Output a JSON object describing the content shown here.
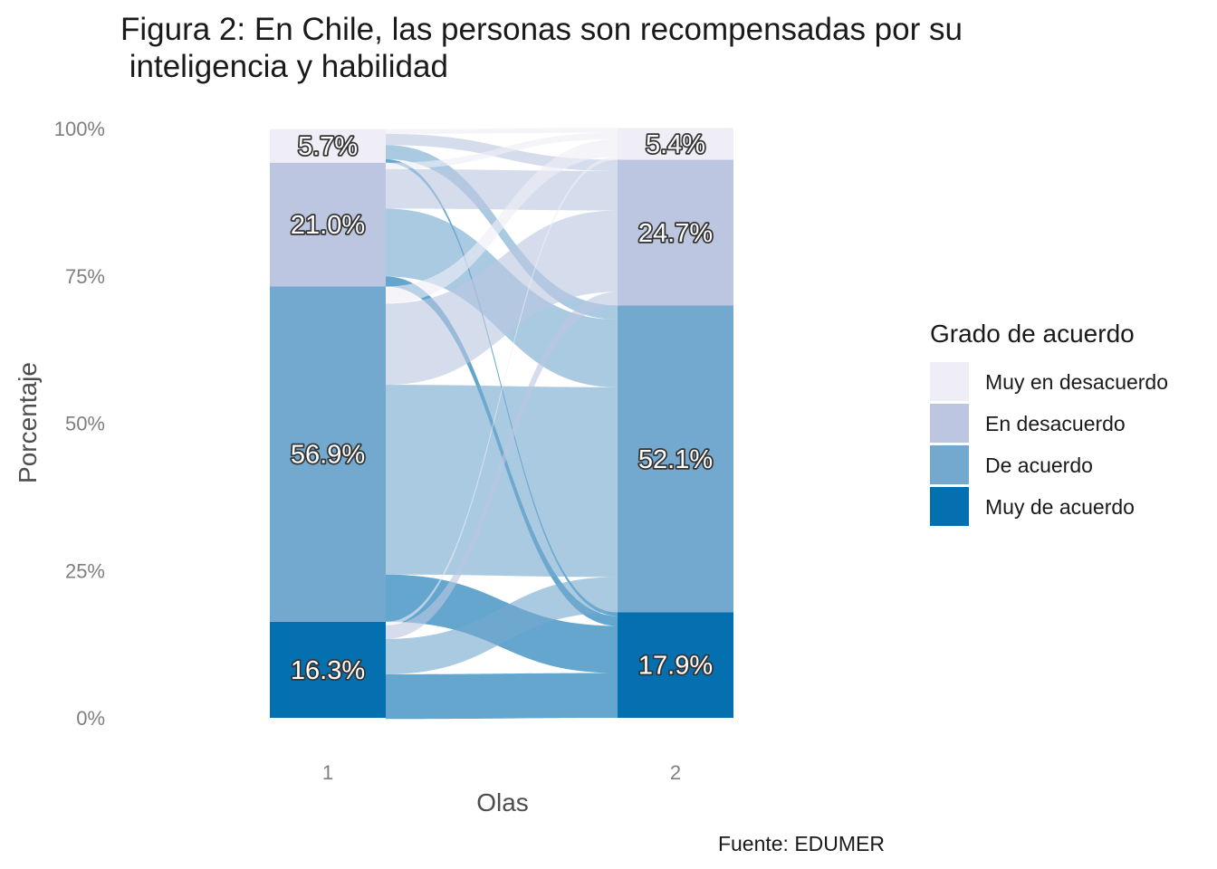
{
  "chart_data": {
    "type": "alluvial",
    "title_lines": [
      "Figura 2: En Chile, las personas son recompensadas por su",
      " inteligencia y habilidad"
    ],
    "xlabel": "Olas",
    "ylabel": "Porcentaje",
    "x_categories": [
      "1",
      "2"
    ],
    "y_ticks": [
      "0%",
      "25%",
      "50%",
      "75%",
      "100%"
    ],
    "ylim": [
      0,
      100
    ],
    "legend_title": "Grado de acuerdo",
    "legend_position": "right",
    "caption": "Fuente: EDUMER",
    "categories": [
      {
        "name": "Muy en desacuerdo",
        "color": "#EFEDF5"
      },
      {
        "name": "En desacuerdo",
        "color": "#BCC6E0"
      },
      {
        "name": "De acuerdo",
        "color": "#74A9CF"
      },
      {
        "name": "Muy de acuerdo",
        "color": "#0570B0"
      }
    ],
    "stack_order_top_to_bottom": [
      "Muy en desacuerdo",
      "En desacuerdo",
      "De acuerdo",
      "Muy de acuerdo"
    ],
    "waves": [
      {
        "wave": "1",
        "values": [
          5.7,
          21.0,
          56.9,
          16.3
        ],
        "labels": [
          "5.7%",
          "21.0%",
          "56.9%",
          "16.3%"
        ]
      },
      {
        "wave": "2",
        "values": [
          5.4,
          24.7,
          52.1,
          17.9
        ],
        "labels": [
          "5.4%",
          "24.7%",
          "52.1%",
          "17.9%"
        ]
      }
    ],
    "flows": [
      {
        "from": "Muy en desacuerdo",
        "to": "Muy en desacuerdo",
        "value": 0.8
      },
      {
        "from": "Muy en desacuerdo",
        "to": "En desacuerdo",
        "value": 1.9
      },
      {
        "from": "Muy en desacuerdo",
        "to": "De acuerdo",
        "value": 2.4
      },
      {
        "from": "Muy en desacuerdo",
        "to": "Muy de acuerdo",
        "value": 0.6
      },
      {
        "from": "En desacuerdo",
        "to": "Muy en desacuerdo",
        "value": 1.1
      },
      {
        "from": "En desacuerdo",
        "to": "En desacuerdo",
        "value": 6.7
      },
      {
        "from": "En desacuerdo",
        "to": "De acuerdo",
        "value": 11.5
      },
      {
        "from": "En desacuerdo",
        "to": "Muy de acuerdo",
        "value": 1.7
      },
      {
        "from": "De acuerdo",
        "to": "Muy en desacuerdo",
        "value": 2.9
      },
      {
        "from": "De acuerdo",
        "to": "En desacuerdo",
        "value": 13.8
      },
      {
        "from": "De acuerdo",
        "to": "De acuerdo",
        "value": 32.2
      },
      {
        "from": "De acuerdo",
        "to": "Muy de acuerdo",
        "value": 8.0
      },
      {
        "from": "Muy de acuerdo",
        "to": "Muy en desacuerdo",
        "value": 0.6
      },
      {
        "from": "Muy de acuerdo",
        "to": "En desacuerdo",
        "value": 2.3
      },
      {
        "from": "Muy de acuerdo",
        "to": "De acuerdo",
        "value": 6.0
      },
      {
        "from": "Muy de acuerdo",
        "to": "Muy de acuerdo",
        "value": 7.6
      }
    ]
  }
}
